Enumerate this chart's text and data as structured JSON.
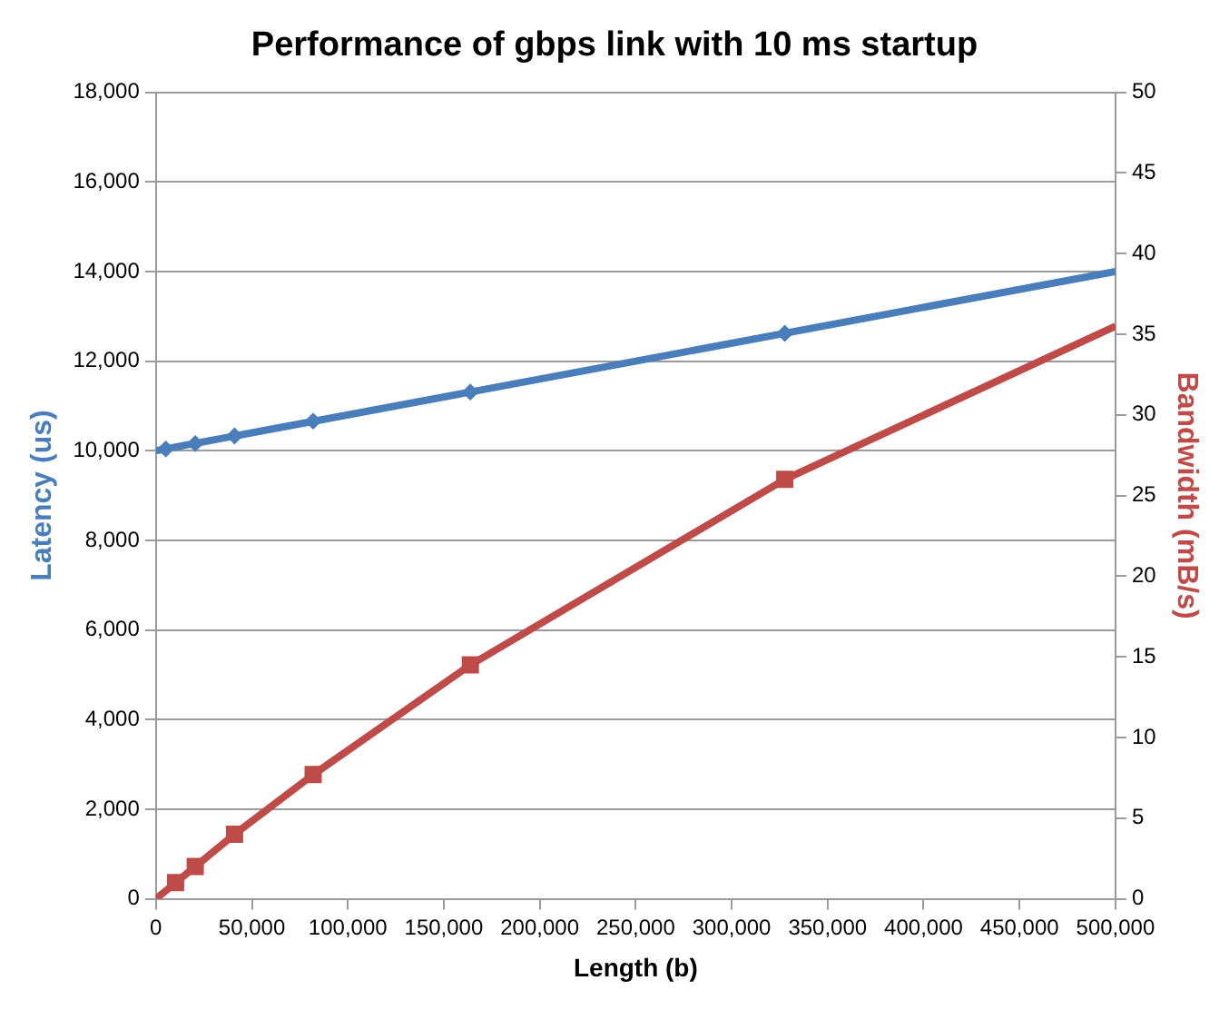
{
  "chart_data": {
    "type": "line",
    "title": "Performance of gbps link with 10 ms startup",
    "xlabel": "Length (b)",
    "ylabel": "Latency (us)",
    "y2label": "Bandwidth (mB/s)",
    "xlim": [
      0,
      500000
    ],
    "xticks": [
      0,
      {
        "value": 50000,
        "label": "50,000"
      },
      {
        "value": 100000,
        "label": "100,000"
      },
      {
        "value": 150000,
        "label": "150,000"
      },
      {
        "value": 200000,
        "label": "200,000"
      },
      {
        "value": 250000,
        "label": "250,000"
      },
      {
        "value": 300000,
        "label": "300,000"
      },
      {
        "value": 350000,
        "label": "350,000"
      },
      {
        "value": 400000,
        "label": "400,000"
      },
      {
        "value": 450000,
        "label": "450,000"
      },
      {
        "value": 500000,
        "label": "500,000"
      }
    ],
    "ylim": [
      0,
      18000
    ],
    "yticks": [
      0,
      {
        "value": 2000,
        "label": "2,000"
      },
      {
        "value": 4000,
        "label": "4,000"
      },
      {
        "value": 6000,
        "label": "6,000"
      },
      {
        "value": 8000,
        "label": "8,000"
      },
      {
        "value": 10000,
        "label": "10,000"
      },
      {
        "value": 12000,
        "label": "12,000"
      },
      {
        "value": 14000,
        "label": "14,000"
      },
      {
        "value": 16000,
        "label": "16,000"
      },
      {
        "value": 18000,
        "label": "18,000"
      }
    ],
    "y2lim": [
      0,
      50
    ],
    "y2ticks": [
      0,
      5,
      10,
      15,
      20,
      25,
      30,
      35,
      40,
      45,
      50
    ],
    "grid": "y",
    "legend": false,
    "series": [
      {
        "color": "#4a7ebb",
        "marker": "none",
        "x": [
          0,
          500000
        ],
        "values": [
          10000,
          14000
        ]
      },
      {
        "type": "scatter",
        "color": "#4a7ebb",
        "marker": "diamond",
        "x": [
          5120,
          20480,
          40960,
          81920,
          163840,
          327680
        ],
        "values": [
          10040,
          10160,
          10330,
          10660,
          11310,
          12620
        ]
      },
      {
        "color": "#be4b48",
        "marker": "none",
        "axis": "y2",
        "x": [
          0,
          5120,
          10240,
          20480,
          40960,
          81920,
          163840,
          327680,
          500000
        ],
        "values": [
          0,
          0.5,
          1.0,
          2.0,
          4.0,
          7.7,
          14.5,
          26.0,
          35.5
        ]
      },
      {
        "type": "scatter",
        "color": "#be4b48",
        "marker": "square",
        "axis": "y2",
        "x": [
          10240,
          20480,
          40960,
          81920,
          163840,
          327680
        ],
        "values": [
          1.0,
          2.0,
          4.0,
          7.7,
          14.5,
          26.0
        ]
      }
    ]
  }
}
